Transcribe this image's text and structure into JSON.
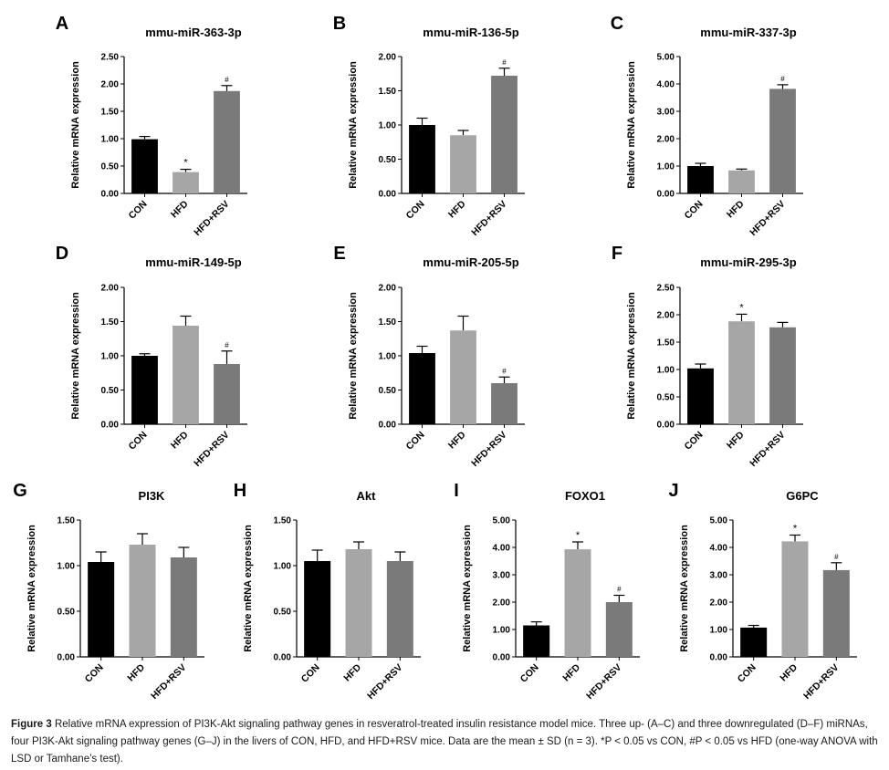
{
  "figure": {
    "caption_label": "Figure 3",
    "caption_text": "Relative mRNA expression of PI3K-Akt signaling pathway genes in resveratrol-treated insulin resistance model mice. Three up- (A–C) and three downregulated (D–F) miRNAs, four PI3K-Akt signaling pathway genes (G–J) in the livers of CON, HFD, and HFD+RSV mice. Data are the mean ± SD (n = 3). *P < 0.05 vs CON, #P < 0.05 vs HFD (one-way ANOVA with LSD or Tamhane’s test)."
  },
  "colors": {
    "CON": "#000000",
    "HFD": "#a6a6a6",
    "HFD+RSV": "#7a7a7a",
    "axis": "#000000"
  },
  "chart_data": [
    {
      "panel": "A",
      "type": "bar",
      "title": "mmu-miR-363-3p",
      "ylabel": "Relative mRNA expression",
      "categories": [
        "CON",
        "HFD",
        "HFD+RSV"
      ],
      "values": [
        0.99,
        0.39,
        1.87
      ],
      "errors": [
        0.05,
        0.05,
        0.1
      ],
      "annotations": [
        "",
        "*",
        "#"
      ],
      "ylim": [
        0,
        2.5
      ],
      "yticks": [
        "0.00",
        "0.50",
        "1.00",
        "1.50",
        "2.00",
        "2.50"
      ]
    },
    {
      "panel": "B",
      "type": "bar",
      "title": "mmu-miR-136-5p",
      "ylabel": "Relative mRNA expression",
      "categories": [
        "CON",
        "HFD",
        "HFD+RSV"
      ],
      "values": [
        1.0,
        0.85,
        1.72
      ],
      "errors": [
        0.1,
        0.07,
        0.11
      ],
      "annotations": [
        "",
        "",
        "#"
      ],
      "ylim": [
        0,
        2.0
      ],
      "yticks": [
        "0.00",
        "0.50",
        "1.00",
        "1.50",
        "2.00"
      ]
    },
    {
      "panel": "C",
      "type": "bar",
      "title": "mmu-miR-337-3p",
      "ylabel": "Relative mRNA expression",
      "categories": [
        "CON",
        "HFD",
        "HFD+RSV"
      ],
      "values": [
        1.0,
        0.84,
        3.82
      ],
      "errors": [
        0.1,
        0.05,
        0.15
      ],
      "annotations": [
        "",
        "",
        "#"
      ],
      "ylim": [
        0,
        5.0
      ],
      "yticks": [
        "0.00",
        "1.00",
        "2.00",
        "3.00",
        "4.00",
        "5.00"
      ]
    },
    {
      "panel": "D",
      "type": "bar",
      "title": "mmu-miR-149-5p",
      "ylabel": "Relative mRNA expression",
      "categories": [
        "CON",
        "HFD",
        "HFD+RSV"
      ],
      "values": [
        1.0,
        1.44,
        0.88
      ],
      "errors": [
        0.03,
        0.14,
        0.19
      ],
      "annotations": [
        "",
        "",
        "#"
      ],
      "ylim": [
        0,
        2.0
      ],
      "yticks": [
        "0.00",
        "0.50",
        "1.00",
        "1.50",
        "2.00"
      ]
    },
    {
      "panel": "E",
      "type": "bar",
      "title": "mmu-miR-205-5p",
      "ylabel": "Relative mRNA expression",
      "categories": [
        "CON",
        "HFD",
        "HFD+RSV"
      ],
      "values": [
        1.04,
        1.37,
        0.6
      ],
      "errors": [
        0.1,
        0.21,
        0.09
      ],
      "annotations": [
        "",
        "",
        "#"
      ],
      "ylim": [
        0,
        2.0
      ],
      "yticks": [
        "0.00",
        "0.50",
        "1.00",
        "1.50",
        "2.00"
      ]
    },
    {
      "panel": "F",
      "type": "bar",
      "title": "mmu-miR-295-3p",
      "ylabel": "Relative mRNA expression",
      "categories": [
        "CON",
        "HFD",
        "HFD+RSV"
      ],
      "values": [
        1.02,
        1.88,
        1.77
      ],
      "errors": [
        0.08,
        0.13,
        0.09
      ],
      "annotations": [
        "",
        "*",
        ""
      ],
      "ylim": [
        0,
        2.5
      ],
      "yticks": [
        "0.00",
        "0.50",
        "1.00",
        "1.50",
        "2.00",
        "2.50"
      ]
    },
    {
      "panel": "G",
      "type": "bar",
      "title": "PI3K",
      "ylabel": "Relative mRNA expression",
      "categories": [
        "CON",
        "HFD",
        "HFD+RSV"
      ],
      "values": [
        1.04,
        1.23,
        1.09
      ],
      "errors": [
        0.11,
        0.12,
        0.11
      ],
      "annotations": [
        "",
        "",
        ""
      ],
      "ylim": [
        0,
        1.5
      ],
      "yticks": [
        "0.00",
        "0.50",
        "1.00",
        "1.50"
      ]
    },
    {
      "panel": "H",
      "type": "bar",
      "title": "Akt",
      "ylabel": "Relative mRNA expression",
      "categories": [
        "CON",
        "HFD",
        "HFD+RSV"
      ],
      "values": [
        1.05,
        1.18,
        1.05
      ],
      "errors": [
        0.12,
        0.08,
        0.1
      ],
      "annotations": [
        "",
        "",
        ""
      ],
      "ylim": [
        0,
        1.5
      ],
      "yticks": [
        "0.00",
        "0.50",
        "1.00",
        "1.50"
      ]
    },
    {
      "panel": "I",
      "type": "bar",
      "title": "FOXO1",
      "ylabel": "Relative mRNA expression",
      "categories": [
        "CON",
        "HFD",
        "HFD+RSV"
      ],
      "values": [
        1.15,
        3.93,
        2.0
      ],
      "errors": [
        0.13,
        0.27,
        0.25
      ],
      "annotations": [
        "",
        "*",
        "#"
      ],
      "ylim": [
        0,
        5.0
      ],
      "yticks": [
        "0.00",
        "1.00",
        "2.00",
        "3.00",
        "4.00",
        "5.00"
      ]
    },
    {
      "panel": "J",
      "type": "bar",
      "title": "G6PC",
      "ylabel": "Relative mRNA expression",
      "categories": [
        "CON",
        "HFD",
        "HFD+RSV"
      ],
      "values": [
        1.07,
        4.22,
        3.17
      ],
      "errors": [
        0.08,
        0.23,
        0.27
      ],
      "annotations": [
        "",
        "*",
        "#"
      ],
      "ylim": [
        0,
        5.0
      ],
      "yticks": [
        "0.00",
        "1.00",
        "2.00",
        "3.00",
        "4.00",
        "5.00"
      ]
    }
  ]
}
